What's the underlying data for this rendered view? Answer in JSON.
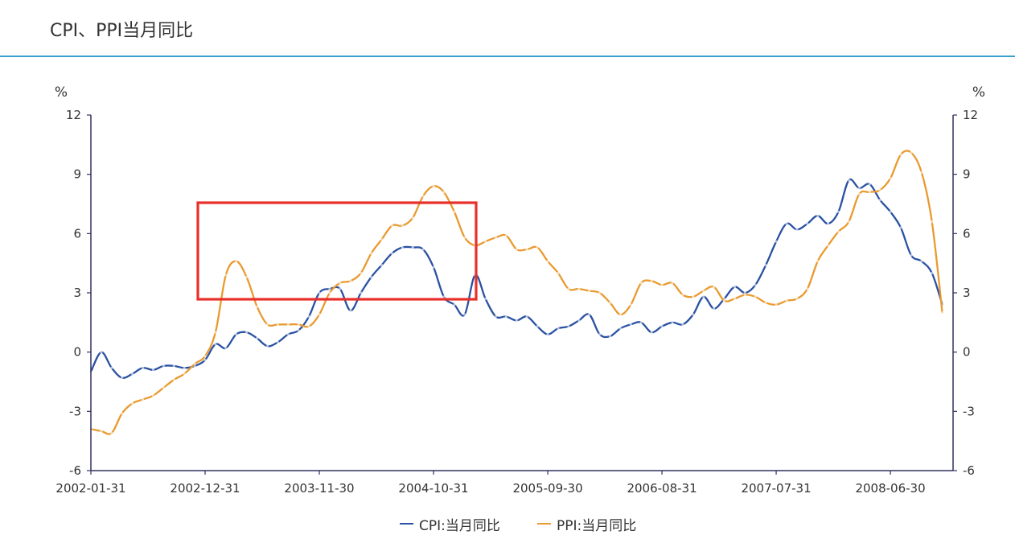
{
  "colors": {
    "title_rule": "#3a9fcb",
    "axis": "#30305e",
    "annotation": "#e8302a"
  },
  "chart_data": {
    "type": "line",
    "title": "CPI、PPI当月同比",
    "y_unit_left": "%",
    "y_unit_right": "%",
    "ylim": [
      -6,
      12
    ],
    "y_ticks": [
      12,
      9,
      6,
      3,
      0,
      -3,
      -6
    ],
    "x_ticks": [
      {
        "label": "2002-01-31",
        "month": 0
      },
      {
        "label": "2002-12-31",
        "month": 11
      },
      {
        "label": "2003-11-30",
        "month": 22
      },
      {
        "label": "2004-10-31",
        "month": 33
      },
      {
        "label": "2005-09-30",
        "month": 44
      },
      {
        "label": "2006-08-31",
        "month": 55
      },
      {
        "label": "2007-07-31",
        "month": 66
      },
      {
        "label": "2008-06-30",
        "month": 77
      }
    ],
    "grid": false,
    "legend_position": "bottom",
    "series": [
      {
        "name": "CPI:当月同比",
        "color": "#2a51a2",
        "values": [
          -1.0,
          0.0,
          -0.8,
          -1.3,
          -1.1,
          -0.8,
          -0.9,
          -0.7,
          -0.7,
          -0.8,
          -0.7,
          -0.4,
          0.4,
          0.2,
          0.9,
          1.0,
          0.7,
          0.3,
          0.5,
          0.9,
          1.1,
          1.8,
          3.0,
          3.2,
          3.2,
          2.1,
          3.0,
          3.8,
          4.4,
          5.0,
          5.3,
          5.3,
          5.2,
          4.3,
          2.8,
          2.4,
          1.9,
          3.9,
          2.7,
          1.8,
          1.8,
          1.6,
          1.8,
          1.3,
          0.9,
          1.2,
          1.3,
          1.6,
          1.9,
          0.9,
          0.8,
          1.2,
          1.4,
          1.5,
          1.0,
          1.3,
          1.5,
          1.4,
          1.9,
          2.8,
          2.2,
          2.7,
          3.3,
          3.0,
          3.4,
          4.4,
          5.6,
          6.5,
          6.2,
          6.5,
          6.9,
          6.5,
          7.1,
          8.7,
          8.3,
          8.5,
          7.7,
          7.1,
          6.3,
          4.9,
          4.6,
          4.0,
          2.4
        ]
      },
      {
        "name": "PPI:当月同比",
        "color": "#e99a2f",
        "values": [
          -3.9,
          -4.0,
          -4.1,
          -3.1,
          -2.6,
          -2.4,
          -2.2,
          -1.8,
          -1.4,
          -1.1,
          -0.6,
          -0.2,
          1.0,
          3.9,
          4.6,
          3.8,
          2.3,
          1.4,
          1.4,
          1.4,
          1.4,
          1.3,
          1.9,
          3.0,
          3.5,
          3.6,
          4.0,
          5.0,
          5.7,
          6.4,
          6.4,
          6.8,
          7.9,
          8.4,
          8.1,
          7.1,
          5.8,
          5.4,
          5.6,
          5.8,
          5.9,
          5.2,
          5.2,
          5.3,
          4.6,
          4.0,
          3.2,
          3.2,
          3.1,
          3.0,
          2.5,
          1.9,
          2.4,
          3.5,
          3.6,
          3.4,
          3.5,
          2.9,
          2.8,
          3.1,
          3.3,
          2.6,
          2.7,
          2.9,
          2.8,
          2.5,
          2.4,
          2.6,
          2.7,
          3.2,
          4.6,
          5.4,
          6.1,
          6.6,
          8.0,
          8.1,
          8.2,
          8.8,
          10.0,
          10.1,
          9.1,
          6.6,
          2.0
        ]
      }
    ]
  }
}
